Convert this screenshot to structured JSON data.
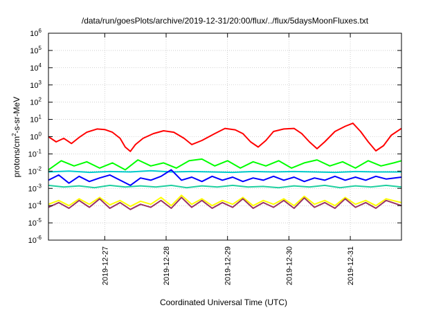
{
  "chart_data": {
    "type": "line",
    "title": "/data/run/goesPlots/archive/2019-12-31/20:00/flux/../flux/5daysMoonFluxes.txt",
    "xlabel": "Coordinated Universal Time (UTC)",
    "ylabel": {
      "prefix": "protons/cm",
      "sup": "2",
      "suffix": "-s-sr-MeV"
    },
    "yscale": "log",
    "ylim": [
      1e-06,
      1000000.0
    ],
    "xlim": [
      "2019-12-26T02:00",
      "2019-12-31T20:00"
    ],
    "grid": true,
    "legend": "none",
    "y_ticks": [
      {
        "base": "10",
        "exp": "-6",
        "value": 1e-06
      },
      {
        "base": "10",
        "exp": "-5",
        "value": 1e-05
      },
      {
        "base": "10",
        "exp": "-4",
        "value": 0.0001
      },
      {
        "base": "10",
        "exp": "-3",
        "value": 0.001
      },
      {
        "base": "10",
        "exp": "-2",
        "value": 0.01
      },
      {
        "base": "10",
        "exp": "-1",
        "value": 0.1
      },
      {
        "base": "10",
        "exp": "0",
        "value": 1
      },
      {
        "base": "10",
        "exp": "1",
        "value": 10
      },
      {
        "base": "10",
        "exp": "2",
        "value": 100
      },
      {
        "base": "10",
        "exp": "3",
        "value": 1000
      },
      {
        "base": "10",
        "exp": "4",
        "value": 10000
      },
      {
        "base": "10",
        "exp": "5",
        "value": 100000
      },
      {
        "base": "10",
        "exp": "6",
        "value": 1000000
      }
    ],
    "x_ticks": [
      {
        "label": "2019-12-27",
        "value": "2019-12-27T00:00"
      },
      {
        "label": "2019-12-28",
        "value": "2019-12-28T00:00"
      },
      {
        "label": "2019-12-29",
        "value": "2019-12-29T00:00"
      },
      {
        "label": "2019-12-30",
        "value": "2019-12-30T00:00"
      },
      {
        "label": "2019-12-31",
        "value": "2019-12-31T00:00"
      }
    ],
    "series": [
      {
        "color": "#ff0000",
        "points": [
          [
            "2019-12-26T02:00",
            1.0
          ],
          [
            "2019-12-26T05:00",
            0.5
          ],
          [
            "2019-12-26T08:00",
            0.8
          ],
          [
            "2019-12-26T11:00",
            0.4
          ],
          [
            "2019-12-26T14:00",
            0.9
          ],
          [
            "2019-12-26T17:00",
            1.8
          ],
          [
            "2019-12-26T21:00",
            2.8
          ],
          [
            "2019-12-27T00:00",
            2.6
          ],
          [
            "2019-12-27T03:00",
            1.8
          ],
          [
            "2019-12-27T06:00",
            0.8
          ],
          [
            "2019-12-27T08:00",
            0.25
          ],
          [
            "2019-12-27T10:00",
            0.14
          ],
          [
            "2019-12-27T12:00",
            0.35
          ],
          [
            "2019-12-27T15:00",
            0.8
          ],
          [
            "2019-12-27T19:00",
            1.5
          ],
          [
            "2019-12-27T23:00",
            2.2
          ],
          [
            "2019-12-28T03:00",
            1.8
          ],
          [
            "2019-12-28T07:00",
            0.8
          ],
          [
            "2019-12-28T10:00",
            0.35
          ],
          [
            "2019-12-28T14:00",
            0.6
          ],
          [
            "2019-12-28T19:00",
            1.5
          ],
          [
            "2019-12-28T23:00",
            3.0
          ],
          [
            "2019-12-29T03:00",
            2.5
          ],
          [
            "2019-12-29T06:00",
            1.5
          ],
          [
            "2019-12-29T09:00",
            0.5
          ],
          [
            "2019-12-29T12:00",
            0.25
          ],
          [
            "2019-12-29T15:00",
            0.6
          ],
          [
            "2019-12-29T18:00",
            2.0
          ],
          [
            "2019-12-29T22:00",
            2.8
          ],
          [
            "2019-12-30T02:00",
            3.0
          ],
          [
            "2019-12-30T05:00",
            1.5
          ],
          [
            "2019-12-30T08:00",
            0.5
          ],
          [
            "2019-12-30T11:00",
            0.2
          ],
          [
            "2019-12-30T14:00",
            0.5
          ],
          [
            "2019-12-30T18:00",
            2.0
          ],
          [
            "2019-12-30T22:00",
            4.0
          ],
          [
            "2019-12-31T01:00",
            6.0
          ],
          [
            "2019-12-31T04:00",
            2.0
          ],
          [
            "2019-12-31T07:00",
            0.5
          ],
          [
            "2019-12-31T10:00",
            0.15
          ],
          [
            "2019-12-31T13:00",
            0.3
          ],
          [
            "2019-12-31T16:00",
            1.2
          ],
          [
            "2019-12-31T20:00",
            3.0
          ]
        ]
      },
      {
        "color": "#00ff00",
        "points": [
          [
            "2019-12-26T02:00",
            0.012
          ],
          [
            "2019-12-26T07:00",
            0.04
          ],
          [
            "2019-12-26T12:00",
            0.02
          ],
          [
            "2019-12-26T17:00",
            0.035
          ],
          [
            "2019-12-26T22:00",
            0.015
          ],
          [
            "2019-12-27T03:00",
            0.03
          ],
          [
            "2019-12-27T08:00",
            0.012
          ],
          [
            "2019-12-27T13:00",
            0.045
          ],
          [
            "2019-12-27T18:00",
            0.02
          ],
          [
            "2019-12-27T23:00",
            0.03
          ],
          [
            "2019-12-28T04:00",
            0.015
          ],
          [
            "2019-12-28T09:00",
            0.04
          ],
          [
            "2019-12-28T14:00",
            0.05
          ],
          [
            "2019-12-28T19:00",
            0.02
          ],
          [
            "2019-12-29T00:00",
            0.04
          ],
          [
            "2019-12-29T05:00",
            0.015
          ],
          [
            "2019-12-29T10:00",
            0.035
          ],
          [
            "2019-12-29T15:00",
            0.02
          ],
          [
            "2019-12-29T20:00",
            0.04
          ],
          [
            "2019-12-30T01:00",
            0.015
          ],
          [
            "2019-12-30T06:00",
            0.03
          ],
          [
            "2019-12-30T11:00",
            0.045
          ],
          [
            "2019-12-30T16:00",
            0.02
          ],
          [
            "2019-12-30T21:00",
            0.035
          ],
          [
            "2019-12-31T02:00",
            0.015
          ],
          [
            "2019-12-31T07:00",
            0.04
          ],
          [
            "2019-12-31T12:00",
            0.02
          ],
          [
            "2019-12-31T17:00",
            0.03
          ],
          [
            "2019-12-31T20:00",
            0.04
          ]
        ]
      },
      {
        "color": "#00cccc",
        "points": [
          [
            "2019-12-26T02:00",
            0.009
          ],
          [
            "2019-12-26T10:00",
            0.01
          ],
          [
            "2019-12-26T18:00",
            0.0085
          ],
          [
            "2019-12-27T02:00",
            0.0095
          ],
          [
            "2019-12-27T10:00",
            0.009
          ],
          [
            "2019-12-27T18:00",
            0.0105
          ],
          [
            "2019-12-28T02:00",
            0.009
          ],
          [
            "2019-12-28T10:00",
            0.0095
          ],
          [
            "2019-12-28T18:00",
            0.009
          ],
          [
            "2019-12-29T02:00",
            0.0085
          ],
          [
            "2019-12-29T10:00",
            0.0095
          ],
          [
            "2019-12-29T18:00",
            0.009
          ],
          [
            "2019-12-30T02:00",
            0.0095
          ],
          [
            "2019-12-30T10:00",
            0.009
          ],
          [
            "2019-12-30T18:00",
            0.0085
          ],
          [
            "2019-12-31T02:00",
            0.0095
          ],
          [
            "2019-12-31T10:00",
            0.009
          ],
          [
            "2019-12-31T20:00",
            0.009
          ]
        ]
      },
      {
        "color": "#0000ff",
        "points": [
          [
            "2019-12-26T02:00",
            0.003
          ],
          [
            "2019-12-26T06:00",
            0.006
          ],
          [
            "2019-12-26T10:00",
            0.002
          ],
          [
            "2019-12-26T14:00",
            0.005
          ],
          [
            "2019-12-26T18:00",
            0.0025
          ],
          [
            "2019-12-26T22:00",
            0.004
          ],
          [
            "2019-12-27T02:00",
            0.006
          ],
          [
            "2019-12-27T06:00",
            0.003
          ],
          [
            "2019-12-27T10:00",
            0.0015
          ],
          [
            "2019-12-27T14:00",
            0.004
          ],
          [
            "2019-12-27T18:00",
            0.003
          ],
          [
            "2019-12-27T22:00",
            0.005
          ],
          [
            "2019-12-28T02:00",
            0.012
          ],
          [
            "2019-12-28T06:00",
            0.003
          ],
          [
            "2019-12-28T10:00",
            0.0045
          ],
          [
            "2019-12-28T14:00",
            0.0025
          ],
          [
            "2019-12-28T18:00",
            0.005
          ],
          [
            "2019-12-28T22:00",
            0.003
          ],
          [
            "2019-12-29T02:00",
            0.0045
          ],
          [
            "2019-12-29T06:00",
            0.0025
          ],
          [
            "2019-12-29T10:00",
            0.004
          ],
          [
            "2019-12-29T14:00",
            0.003
          ],
          [
            "2019-12-29T18:00",
            0.005
          ],
          [
            "2019-12-29T22:00",
            0.003
          ],
          [
            "2019-12-30T02:00",
            0.0045
          ],
          [
            "2019-12-30T06:00",
            0.0025
          ],
          [
            "2019-12-30T10:00",
            0.004
          ],
          [
            "2019-12-30T14:00",
            0.003
          ],
          [
            "2019-12-30T18:00",
            0.005
          ],
          [
            "2019-12-30T22:00",
            0.003
          ],
          [
            "2019-12-31T02:00",
            0.0045
          ],
          [
            "2019-12-31T06:00",
            0.003
          ],
          [
            "2019-12-31T10:00",
            0.005
          ],
          [
            "2019-12-31T14:00",
            0.0035
          ],
          [
            "2019-12-31T20:00",
            0.0045
          ]
        ]
      },
      {
        "color": "#20d0a0",
        "points": [
          [
            "2019-12-26T02:00",
            0.0015
          ],
          [
            "2019-12-26T08:00",
            0.0012
          ],
          [
            "2019-12-26T14:00",
            0.0014
          ],
          [
            "2019-12-26T20:00",
            0.0011
          ],
          [
            "2019-12-27T02:00",
            0.0015
          ],
          [
            "2019-12-27T08:00",
            0.0012
          ],
          [
            "2019-12-27T14:00",
            0.0014
          ],
          [
            "2019-12-27T20:00",
            0.0012
          ],
          [
            "2019-12-28T02:00",
            0.0015
          ],
          [
            "2019-12-28T08:00",
            0.0011
          ],
          [
            "2019-12-28T14:00",
            0.0014
          ],
          [
            "2019-12-28T20:00",
            0.0012
          ],
          [
            "2019-12-29T02:00",
            0.0015
          ],
          [
            "2019-12-29T08:00",
            0.0012
          ],
          [
            "2019-12-29T14:00",
            0.0013
          ],
          [
            "2019-12-29T20:00",
            0.0011
          ],
          [
            "2019-12-30T02:00",
            0.0014
          ],
          [
            "2019-12-30T08:00",
            0.0012
          ],
          [
            "2019-12-30T14:00",
            0.0015
          ],
          [
            "2019-12-30T20:00",
            0.0011
          ],
          [
            "2019-12-31T02:00",
            0.0014
          ],
          [
            "2019-12-31T08:00",
            0.0012
          ],
          [
            "2019-12-31T14:00",
            0.0015
          ],
          [
            "2019-12-31T20:00",
            0.0012
          ]
        ]
      },
      {
        "color": "#ffff00",
        "points": [
          [
            "2019-12-26T02:00",
            0.00012
          ],
          [
            "2019-12-26T06:00",
            0.0002
          ],
          [
            "2019-12-26T10:00",
            0.0001
          ],
          [
            "2019-12-26T14:00",
            0.00025
          ],
          [
            "2019-12-26T18:00",
            0.00012
          ],
          [
            "2019-12-26T22:00",
            0.0003
          ],
          [
            "2019-12-27T02:00",
            0.00011
          ],
          [
            "2019-12-27T06:00",
            0.0002
          ],
          [
            "2019-12-27T10:00",
            9e-05
          ],
          [
            "2019-12-27T14:00",
            0.00018
          ],
          [
            "2019-12-27T18:00",
            0.00012
          ],
          [
            "2019-12-27T22:00",
            0.0003
          ],
          [
            "2019-12-28T02:00",
            0.0001
          ],
          [
            "2019-12-28T06:00",
            0.0004
          ],
          [
            "2019-12-28T10:00",
            0.00012
          ],
          [
            "2019-12-28T14:00",
            0.00025
          ],
          [
            "2019-12-28T18:00",
            0.0001
          ],
          [
            "2019-12-28T22:00",
            0.0002
          ],
          [
            "2019-12-29T02:00",
            0.00012
          ],
          [
            "2019-12-29T06:00",
            0.0003
          ],
          [
            "2019-12-29T10:00",
            0.0001
          ],
          [
            "2019-12-29T14:00",
            0.0002
          ],
          [
            "2019-12-29T18:00",
            0.00012
          ],
          [
            "2019-12-29T22:00",
            0.00025
          ],
          [
            "2019-12-30T02:00",
            0.0001
          ],
          [
            "2019-12-30T06:00",
            0.00035
          ],
          [
            "2019-12-30T10:00",
            0.00012
          ],
          [
            "2019-12-30T14:00",
            0.0002
          ],
          [
            "2019-12-30T18:00",
            0.0001
          ],
          [
            "2019-12-30T22:00",
            0.0003
          ],
          [
            "2019-12-31T02:00",
            0.00012
          ],
          [
            "2019-12-31T06:00",
            0.0002
          ],
          [
            "2019-12-31T10:00",
            0.0001
          ],
          [
            "2019-12-31T14:00",
            0.00025
          ],
          [
            "2019-12-31T20:00",
            0.00015
          ]
        ]
      },
      {
        "color": "#993366",
        "points": [
          [
            "2019-12-26T02:00",
            8e-05
          ],
          [
            "2019-12-26T06:00",
            0.00015
          ],
          [
            "2019-12-26T10:00",
            7e-05
          ],
          [
            "2019-12-26T14:00",
            0.0002
          ],
          [
            "2019-12-26T18:00",
            8e-05
          ],
          [
            "2019-12-26T22:00",
            0.00025
          ],
          [
            "2019-12-27T02:00",
            7e-05
          ],
          [
            "2019-12-27T06:00",
            0.00015
          ],
          [
            "2019-12-27T10:00",
            6e-05
          ],
          [
            "2019-12-27T14:00",
            0.00012
          ],
          [
            "2019-12-27T18:00",
            8e-05
          ],
          [
            "2019-12-27T22:00",
            0.0002
          ],
          [
            "2019-12-28T02:00",
            7e-05
          ],
          [
            "2019-12-28T06:00",
            0.0003
          ],
          [
            "2019-12-28T10:00",
            8e-05
          ],
          [
            "2019-12-28T14:00",
            0.0002
          ],
          [
            "2019-12-28T18:00",
            7e-05
          ],
          [
            "2019-12-28T22:00",
            0.00015
          ],
          [
            "2019-12-29T02:00",
            8e-05
          ],
          [
            "2019-12-29T06:00",
            0.00025
          ],
          [
            "2019-12-29T10:00",
            7e-05
          ],
          [
            "2019-12-29T14:00",
            0.00015
          ],
          [
            "2019-12-29T18:00",
            8e-05
          ],
          [
            "2019-12-29T22:00",
            0.0002
          ],
          [
            "2019-12-30T02:00",
            7e-05
          ],
          [
            "2019-12-30T06:00",
            0.00028
          ],
          [
            "2019-12-30T10:00",
            8e-05
          ],
          [
            "2019-12-30T14:00",
            0.00015
          ],
          [
            "2019-12-30T18:00",
            7e-05
          ],
          [
            "2019-12-30T22:00",
            0.00025
          ],
          [
            "2019-12-31T02:00",
            8e-05
          ],
          [
            "2019-12-31T06:00",
            0.00015
          ],
          [
            "2019-12-31T10:00",
            7e-05
          ],
          [
            "2019-12-31T14:00",
            0.0002
          ],
          [
            "2019-12-31T20:00",
            0.0001
          ]
        ]
      }
    ]
  }
}
